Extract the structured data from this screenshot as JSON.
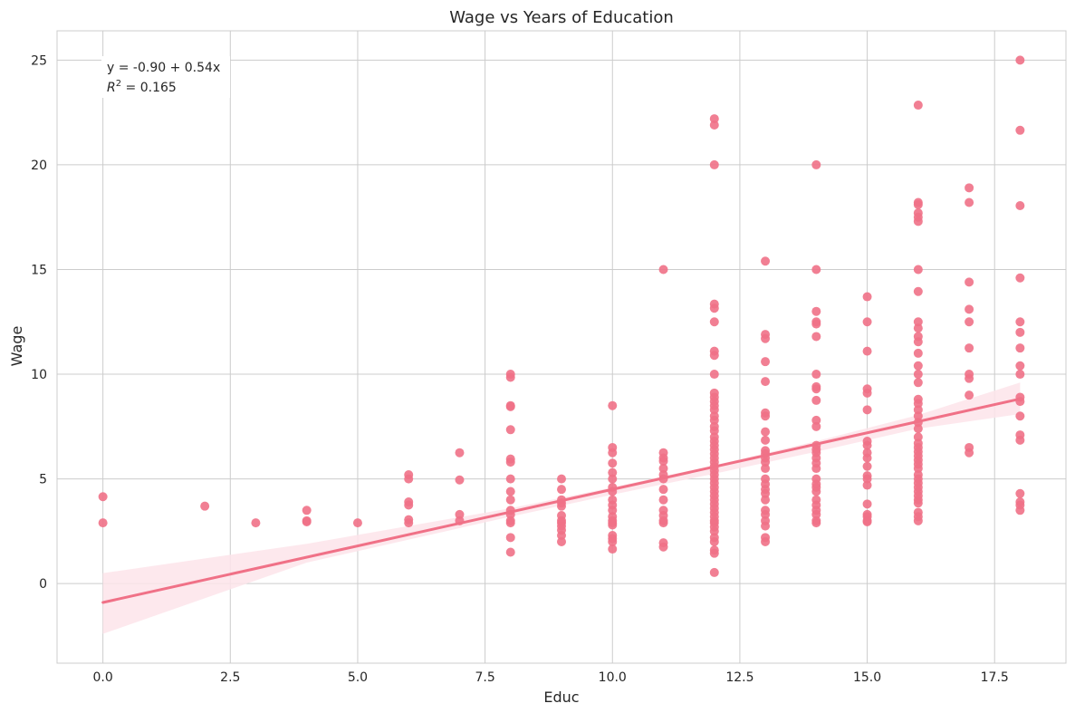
{
  "chart_data": {
    "type": "scatter",
    "title": "Wage vs Years of Education",
    "xlabel": "Educ",
    "ylabel": "Wage",
    "xlim": [
      -0.9,
      18.9
    ],
    "ylim": [
      -3.8,
      26.4
    ],
    "xticks": [
      "0.0",
      "2.5",
      "5.0",
      "7.5",
      "10.0",
      "12.5",
      "15.0",
      "17.5"
    ],
    "xtick_values": [
      0,
      2.5,
      5,
      7.5,
      10,
      12.5,
      15,
      17.5
    ],
    "yticks": [
      "0",
      "5",
      "10",
      "15",
      "20",
      "25"
    ],
    "ytick_values": [
      0,
      5,
      10,
      15,
      20,
      25
    ],
    "grid": true,
    "annotation": {
      "equation": "y = -0.90 + 0.54x",
      "r2_prefix": "R",
      "r2_sup": "2",
      "r2_value": " = 0.165"
    },
    "point_color": "#f07187",
    "line_color": "#f07187",
    "band_color": "#fde4ea",
    "fit": {
      "intercept": -0.9,
      "slope": 0.54,
      "ci_lower": [
        [
          0,
          -2.4
        ],
        [
          4,
          1.0
        ],
        [
          8,
          3.2
        ],
        [
          10,
          4.25
        ],
        [
          12,
          5.25
        ],
        [
          14,
          6.3
        ],
        [
          16,
          7.4
        ],
        [
          18,
          8.1
        ]
      ],
      "ci_upper": [
        [
          0,
          0.5
        ],
        [
          4,
          1.9
        ],
        [
          8,
          3.6
        ],
        [
          10,
          4.6
        ],
        [
          12,
          5.65
        ],
        [
          14,
          6.8
        ],
        [
          16,
          8.05
        ],
        [
          18,
          9.6
        ]
      ]
    },
    "series": [
      {
        "points": [
          [
            0,
            4.15
          ],
          [
            0,
            2.9
          ],
          [
            2,
            3.7
          ],
          [
            3,
            2.9
          ],
          [
            4,
            3.5
          ],
          [
            4,
            3.0
          ],
          [
            4,
            2.95
          ],
          [
            5,
            2.9
          ],
          [
            6,
            5.2
          ],
          [
            6,
            5.0
          ],
          [
            6,
            3.9
          ],
          [
            6,
            3.75
          ],
          [
            6,
            3.05
          ],
          [
            6,
            2.9
          ],
          [
            7,
            6.25
          ],
          [
            7,
            4.95
          ],
          [
            7,
            3.3
          ],
          [
            7,
            3.0
          ],
          [
            8,
            10.0
          ],
          [
            8,
            9.85
          ],
          [
            8,
            8.5
          ],
          [
            8,
            8.45
          ],
          [
            8,
            7.35
          ],
          [
            8,
            5.95
          ],
          [
            8,
            5.8
          ],
          [
            8,
            5.0
          ],
          [
            8,
            4.4
          ],
          [
            8,
            4.0
          ],
          [
            8,
            3.5
          ],
          [
            8,
            3.3
          ],
          [
            8,
            3.0
          ],
          [
            8,
            2.9
          ],
          [
            8,
            2.2
          ],
          [
            8,
            1.5
          ],
          [
            9,
            5.0
          ],
          [
            9,
            4.5
          ],
          [
            9,
            4.0
          ],
          [
            9,
            3.85
          ],
          [
            9,
            3.7
          ],
          [
            9,
            3.25
          ],
          [
            9,
            3.0
          ],
          [
            9,
            2.9
          ],
          [
            9,
            2.75
          ],
          [
            9,
            2.55
          ],
          [
            9,
            2.3
          ],
          [
            9,
            2.0
          ],
          [
            10,
            8.5
          ],
          [
            10,
            6.5
          ],
          [
            10,
            6.25
          ],
          [
            10,
            5.75
          ],
          [
            10,
            5.3
          ],
          [
            10,
            5.0
          ],
          [
            10,
            4.6
          ],
          [
            10,
            4.4
          ],
          [
            10,
            4.0
          ],
          [
            10,
            3.75
          ],
          [
            10,
            3.5
          ],
          [
            10,
            3.2
          ],
          [
            10,
            3.0
          ],
          [
            10,
            2.9
          ],
          [
            10,
            2.8
          ],
          [
            10,
            2.3
          ],
          [
            10,
            2.15
          ],
          [
            10,
            2.0
          ],
          [
            10,
            1.65
          ],
          [
            11,
            15.0
          ],
          [
            11,
            6.25
          ],
          [
            11,
            6.0
          ],
          [
            11,
            5.85
          ],
          [
            11,
            5.5
          ],
          [
            11,
            5.2
          ],
          [
            11,
            5.0
          ],
          [
            11,
            4.5
          ],
          [
            11,
            4.0
          ],
          [
            11,
            3.5
          ],
          [
            11,
            3.25
          ],
          [
            11,
            3.0
          ],
          [
            11,
            2.9
          ],
          [
            11,
            1.95
          ],
          [
            11,
            1.75
          ],
          [
            12,
            22.2
          ],
          [
            12,
            21.9
          ],
          [
            12,
            20.0
          ],
          [
            12,
            13.35
          ],
          [
            12,
            13.15
          ],
          [
            12,
            12.5
          ],
          [
            12,
            11.1
          ],
          [
            12,
            10.9
          ],
          [
            12,
            10.0
          ],
          [
            12,
            9.1
          ],
          [
            12,
            8.9
          ],
          [
            12,
            8.7
          ],
          [
            12,
            8.5
          ],
          [
            12,
            8.3
          ],
          [
            12,
            8.0
          ],
          [
            12,
            7.8
          ],
          [
            12,
            7.5
          ],
          [
            12,
            7.3
          ],
          [
            12,
            7.0
          ],
          [
            12,
            6.8
          ],
          [
            12,
            6.6
          ],
          [
            12,
            6.4
          ],
          [
            12,
            6.2
          ],
          [
            12,
            6.0
          ],
          [
            12,
            5.8
          ],
          [
            12,
            5.6
          ],
          [
            12,
            5.4
          ],
          [
            12,
            5.2
          ],
          [
            12,
            5.0
          ],
          [
            12,
            4.8
          ],
          [
            12,
            4.6
          ],
          [
            12,
            4.4
          ],
          [
            12,
            4.2
          ],
          [
            12,
            4.0
          ],
          [
            12,
            3.8
          ],
          [
            12,
            3.6
          ],
          [
            12,
            3.4
          ],
          [
            12,
            3.2
          ],
          [
            12,
            3.0
          ],
          [
            12,
            2.9
          ],
          [
            12,
            2.7
          ],
          [
            12,
            2.5
          ],
          [
            12,
            2.2
          ],
          [
            12,
            2.0
          ],
          [
            12,
            1.6
          ],
          [
            12,
            1.45
          ],
          [
            12,
            0.53
          ],
          [
            13,
            15.4
          ],
          [
            13,
            11.9
          ],
          [
            13,
            11.7
          ],
          [
            13,
            10.6
          ],
          [
            13,
            9.65
          ],
          [
            13,
            8.15
          ],
          [
            13,
            8.0
          ],
          [
            13,
            7.25
          ],
          [
            13,
            6.85
          ],
          [
            13,
            6.35
          ],
          [
            13,
            6.2
          ],
          [
            13,
            6.0
          ],
          [
            13,
            5.8
          ],
          [
            13,
            5.5
          ],
          [
            13,
            5.0
          ],
          [
            13,
            4.75
          ],
          [
            13,
            4.5
          ],
          [
            13,
            4.3
          ],
          [
            13,
            4.0
          ],
          [
            13,
            3.5
          ],
          [
            13,
            3.3
          ],
          [
            13,
            3.0
          ],
          [
            13,
            2.75
          ],
          [
            13,
            2.2
          ],
          [
            13,
            2.0
          ],
          [
            14,
            20.0
          ],
          [
            14,
            15.0
          ],
          [
            14,
            13.0
          ],
          [
            14,
            12.5
          ],
          [
            14,
            12.4
          ],
          [
            14,
            11.8
          ],
          [
            14,
            10.0
          ],
          [
            14,
            9.4
          ],
          [
            14,
            9.3
          ],
          [
            14,
            8.75
          ],
          [
            14,
            7.8
          ],
          [
            14,
            7.5
          ],
          [
            14,
            6.6
          ],
          [
            14,
            6.4
          ],
          [
            14,
            6.25
          ],
          [
            14,
            6.0
          ],
          [
            14,
            5.75
          ],
          [
            14,
            5.5
          ],
          [
            14,
            5.0
          ],
          [
            14,
            4.75
          ],
          [
            14,
            4.6
          ],
          [
            14,
            4.4
          ],
          [
            14,
            4.0
          ],
          [
            14,
            3.75
          ],
          [
            14,
            3.5
          ],
          [
            14,
            3.3
          ],
          [
            14,
            3.0
          ],
          [
            14,
            2.9
          ],
          [
            15,
            13.7
          ],
          [
            15,
            12.5
          ],
          [
            15,
            11.1
          ],
          [
            15,
            9.3
          ],
          [
            15,
            9.1
          ],
          [
            15,
            8.3
          ],
          [
            15,
            6.8
          ],
          [
            15,
            6.6
          ],
          [
            15,
            6.25
          ],
          [
            15,
            6.0
          ],
          [
            15,
            5.6
          ],
          [
            15,
            5.15
          ],
          [
            15,
            5.0
          ],
          [
            15,
            4.7
          ],
          [
            15,
            3.8
          ],
          [
            15,
            3.3
          ],
          [
            15,
            3.2
          ],
          [
            15,
            3.0
          ],
          [
            15,
            2.95
          ],
          [
            16,
            22.85
          ],
          [
            16,
            18.2
          ],
          [
            16,
            18.1
          ],
          [
            16,
            17.7
          ],
          [
            16,
            17.5
          ],
          [
            16,
            17.3
          ],
          [
            16,
            15.0
          ],
          [
            16,
            13.95
          ],
          [
            16,
            12.5
          ],
          [
            16,
            12.2
          ],
          [
            16,
            11.8
          ],
          [
            16,
            11.55
          ],
          [
            16,
            11.0
          ],
          [
            16,
            10.4
          ],
          [
            16,
            10.0
          ],
          [
            16,
            9.6
          ],
          [
            16,
            8.8
          ],
          [
            16,
            8.6
          ],
          [
            16,
            8.3
          ],
          [
            16,
            8.0
          ],
          [
            16,
            7.7
          ],
          [
            16,
            7.4
          ],
          [
            16,
            7.0
          ],
          [
            16,
            6.7
          ],
          [
            16,
            6.5
          ],
          [
            16,
            6.3
          ],
          [
            16,
            6.1
          ],
          [
            16,
            5.9
          ],
          [
            16,
            5.7
          ],
          [
            16,
            5.5
          ],
          [
            16,
            5.2
          ],
          [
            16,
            5.0
          ],
          [
            16,
            4.8
          ],
          [
            16,
            4.6
          ],
          [
            16,
            4.4
          ],
          [
            16,
            4.2
          ],
          [
            16,
            4.0
          ],
          [
            16,
            3.85
          ],
          [
            16,
            3.4
          ],
          [
            16,
            3.2
          ],
          [
            16,
            3.0
          ],
          [
            17,
            18.9
          ],
          [
            17,
            18.2
          ],
          [
            17,
            14.4
          ],
          [
            17,
            13.1
          ],
          [
            17,
            12.5
          ],
          [
            17,
            11.25
          ],
          [
            17,
            10.0
          ],
          [
            17,
            9.8
          ],
          [
            17,
            9.0
          ],
          [
            17,
            6.5
          ],
          [
            17,
            6.25
          ],
          [
            18,
            25.0
          ],
          [
            18,
            21.65
          ],
          [
            18,
            18.05
          ],
          [
            18,
            14.6
          ],
          [
            18,
            12.5
          ],
          [
            18,
            12.0
          ],
          [
            18,
            11.25
          ],
          [
            18,
            10.4
          ],
          [
            18,
            10.0
          ],
          [
            18,
            8.9
          ],
          [
            18,
            8.7
          ],
          [
            18,
            8.0
          ],
          [
            18,
            7.1
          ],
          [
            18,
            6.85
          ],
          [
            18,
            4.3
          ],
          [
            18,
            3.9
          ],
          [
            18,
            3.75
          ],
          [
            18,
            3.5
          ]
        ]
      }
    ]
  }
}
